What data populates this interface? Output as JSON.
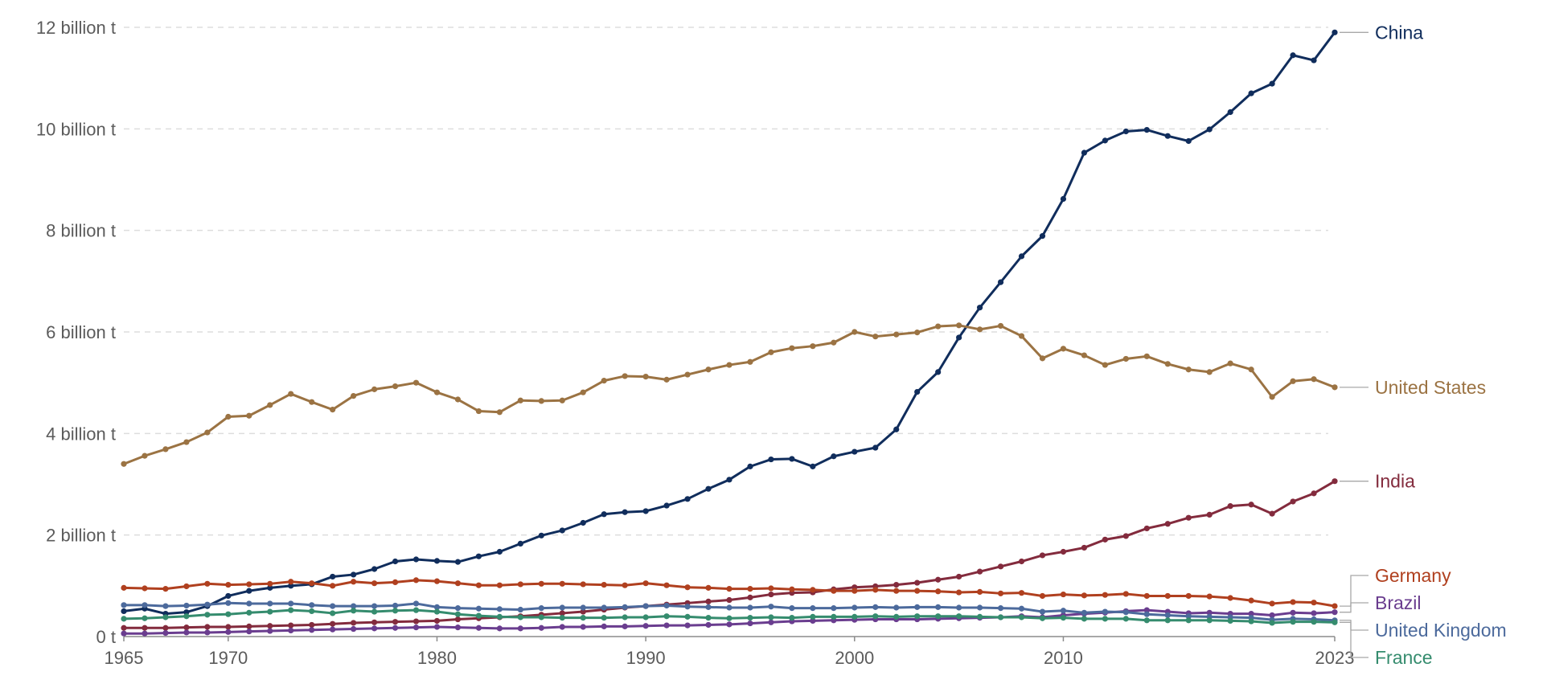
{
  "chart_data": {
    "type": "line",
    "title": "",
    "xlabel": "",
    "ylabel": "",
    "xlim": [
      1965,
      2023
    ],
    "ylim": [
      0,
      12000000000
    ],
    "grid": true,
    "legend_position": "right, end-of-line labels",
    "x_ticks": [
      {
        "value": 1965,
        "label": "1965"
      },
      {
        "value": 1970,
        "label": "1970"
      },
      {
        "value": 1980,
        "label": "1980"
      },
      {
        "value": 1990,
        "label": "1990"
      },
      {
        "value": 2000,
        "label": "2000"
      },
      {
        "value": 2010,
        "label": "2010"
      },
      {
        "value": 2023,
        "label": "2023"
      }
    ],
    "y_ticks": [
      {
        "value": 0,
        "label": "0 t"
      },
      {
        "value": 2000000000,
        "label": "2 billion t"
      },
      {
        "value": 4000000000,
        "label": "4 billion t"
      },
      {
        "value": 6000000000,
        "label": "6 billion t"
      },
      {
        "value": 8000000000,
        "label": "8 billion t"
      },
      {
        "value": 10000000000,
        "label": "10 billion t"
      },
      {
        "value": 12000000000,
        "label": "12 billion t"
      }
    ],
    "x": [
      1965,
      1966,
      1967,
      1968,
      1969,
      1970,
      1971,
      1972,
      1973,
      1974,
      1975,
      1976,
      1977,
      1978,
      1979,
      1980,
      1981,
      1982,
      1983,
      1984,
      1985,
      1986,
      1987,
      1988,
      1989,
      1990,
      1991,
      1992,
      1993,
      1994,
      1995,
      1996,
      1997,
      1998,
      1999,
      2000,
      2001,
      2002,
      2003,
      2004,
      2005,
      2006,
      2007,
      2008,
      2009,
      2010,
      2011,
      2012,
      2013,
      2014,
      2015,
      2016,
      2017,
      2018,
      2019,
      2020,
      2021,
      2022,
      2023
    ],
    "series": [
      {
        "name": "China",
        "color": "#102d5c",
        "values": [
          0.5,
          0.55,
          0.45,
          0.48,
          0.6,
          0.8,
          0.9,
          0.96,
          1.0,
          1.03,
          1.18,
          1.22,
          1.33,
          1.48,
          1.52,
          1.49,
          1.47,
          1.58,
          1.67,
          1.83,
          1.99,
          2.09,
          2.24,
          2.41,
          2.45,
          2.47,
          2.58,
          2.71,
          2.91,
          3.09,
          3.35,
          3.49,
          3.5,
          3.35,
          3.55,
          3.64,
          3.72,
          4.08,
          4.82,
          5.21,
          5.89,
          6.48,
          6.98,
          7.49,
          7.89,
          8.62,
          9.53,
          9.77,
          9.95,
          9.98,
          9.86,
          9.76,
          9.99,
          10.33,
          10.7,
          10.89,
          11.45,
          11.35,
          11.9
        ]
      },
      {
        "name": "United States",
        "color": "#9b7343",
        "values": [
          3.4,
          3.56,
          3.69,
          3.83,
          4.02,
          4.33,
          4.35,
          4.56,
          4.78,
          4.62,
          4.47,
          4.74,
          4.87,
          4.93,
          5.0,
          4.81,
          4.67,
          4.44,
          4.42,
          4.65,
          4.64,
          4.65,
          4.81,
          5.04,
          5.13,
          5.12,
          5.06,
          5.16,
          5.26,
          5.35,
          5.41,
          5.6,
          5.68,
          5.72,
          5.79,
          6.0,
          5.91,
          5.95,
          5.99,
          6.11,
          6.13,
          6.05,
          6.12,
          5.92,
          5.48,
          5.67,
          5.54,
          5.35,
          5.47,
          5.52,
          5.37,
          5.26,
          5.21,
          5.38,
          5.26,
          4.72,
          5.03,
          5.07,
          4.91
        ]
      },
      {
        "name": "India",
        "color": "#832b3d",
        "values": [
          0.17,
          0.17,
          0.17,
          0.18,
          0.19,
          0.19,
          0.2,
          0.21,
          0.22,
          0.23,
          0.25,
          0.27,
          0.28,
          0.29,
          0.3,
          0.31,
          0.34,
          0.36,
          0.38,
          0.4,
          0.43,
          0.46,
          0.49,
          0.53,
          0.57,
          0.6,
          0.63,
          0.66,
          0.69,
          0.72,
          0.77,
          0.83,
          0.86,
          0.87,
          0.93,
          0.97,
          0.99,
          1.02,
          1.06,
          1.12,
          1.18,
          1.28,
          1.38,
          1.48,
          1.6,
          1.67,
          1.75,
          1.91,
          1.98,
          2.13,
          2.22,
          2.34,
          2.4,
          2.57,
          2.6,
          2.42,
          2.66,
          2.82,
          3.06
        ]
      },
      {
        "name": "Germany",
        "color": "#b0401f",
        "values": [
          0.96,
          0.95,
          0.94,
          0.99,
          1.04,
          1.02,
          1.03,
          1.04,
          1.08,
          1.05,
          1.0,
          1.08,
          1.05,
          1.07,
          1.11,
          1.09,
          1.05,
          1.01,
          1.01,
          1.03,
          1.04,
          1.04,
          1.03,
          1.02,
          1.01,
          1.05,
          1.01,
          0.97,
          0.96,
          0.94,
          0.94,
          0.95,
          0.93,
          0.92,
          0.9,
          0.9,
          0.92,
          0.9,
          0.9,
          0.89,
          0.87,
          0.88,
          0.85,
          0.86,
          0.8,
          0.83,
          0.81,
          0.82,
          0.84,
          0.8,
          0.8,
          0.8,
          0.79,
          0.76,
          0.71,
          0.65,
          0.68,
          0.67,
          0.6
        ]
      },
      {
        "name": "Brazil",
        "color": "#6a3d8f",
        "values": [
          0.06,
          0.06,
          0.07,
          0.08,
          0.08,
          0.09,
          0.1,
          0.11,
          0.12,
          0.13,
          0.14,
          0.15,
          0.16,
          0.17,
          0.18,
          0.19,
          0.18,
          0.17,
          0.16,
          0.16,
          0.17,
          0.19,
          0.19,
          0.2,
          0.2,
          0.21,
          0.22,
          0.22,
          0.23,
          0.24,
          0.26,
          0.28,
          0.3,
          0.31,
          0.32,
          0.33,
          0.34,
          0.34,
          0.34,
          0.35,
          0.36,
          0.37,
          0.38,
          0.4,
          0.38,
          0.42,
          0.45,
          0.47,
          0.5,
          0.52,
          0.49,
          0.46,
          0.47,
          0.45,
          0.45,
          0.42,
          0.47,
          0.46,
          0.48
        ]
      },
      {
        "name": "United Kingdom",
        "color": "#4c6a9c",
        "values": [
          0.62,
          0.62,
          0.6,
          0.61,
          0.63,
          0.66,
          0.65,
          0.65,
          0.65,
          0.62,
          0.6,
          0.6,
          0.6,
          0.61,
          0.65,
          0.58,
          0.56,
          0.55,
          0.54,
          0.53,
          0.56,
          0.57,
          0.57,
          0.57,
          0.58,
          0.6,
          0.61,
          0.59,
          0.58,
          0.57,
          0.57,
          0.59,
          0.56,
          0.56,
          0.56,
          0.57,
          0.58,
          0.57,
          0.58,
          0.58,
          0.57,
          0.57,
          0.56,
          0.55,
          0.49,
          0.51,
          0.47,
          0.49,
          0.48,
          0.44,
          0.42,
          0.4,
          0.39,
          0.38,
          0.37,
          0.33,
          0.35,
          0.34,
          0.32
        ]
      },
      {
        "name": "France",
        "color": "#358c6e",
        "values": [
          0.35,
          0.36,
          0.38,
          0.4,
          0.43,
          0.44,
          0.47,
          0.49,
          0.52,
          0.5,
          0.46,
          0.51,
          0.49,
          0.51,
          0.52,
          0.49,
          0.44,
          0.41,
          0.39,
          0.38,
          0.38,
          0.37,
          0.37,
          0.37,
          0.38,
          0.38,
          0.4,
          0.39,
          0.37,
          0.36,
          0.37,
          0.38,
          0.37,
          0.39,
          0.39,
          0.39,
          0.4,
          0.39,
          0.4,
          0.4,
          0.4,
          0.39,
          0.38,
          0.38,
          0.36,
          0.37,
          0.35,
          0.35,
          0.35,
          0.32,
          0.32,
          0.32,
          0.32,
          0.31,
          0.3,
          0.27,
          0.29,
          0.29,
          0.28
        ]
      }
    ],
    "values_unit": "billion t"
  }
}
